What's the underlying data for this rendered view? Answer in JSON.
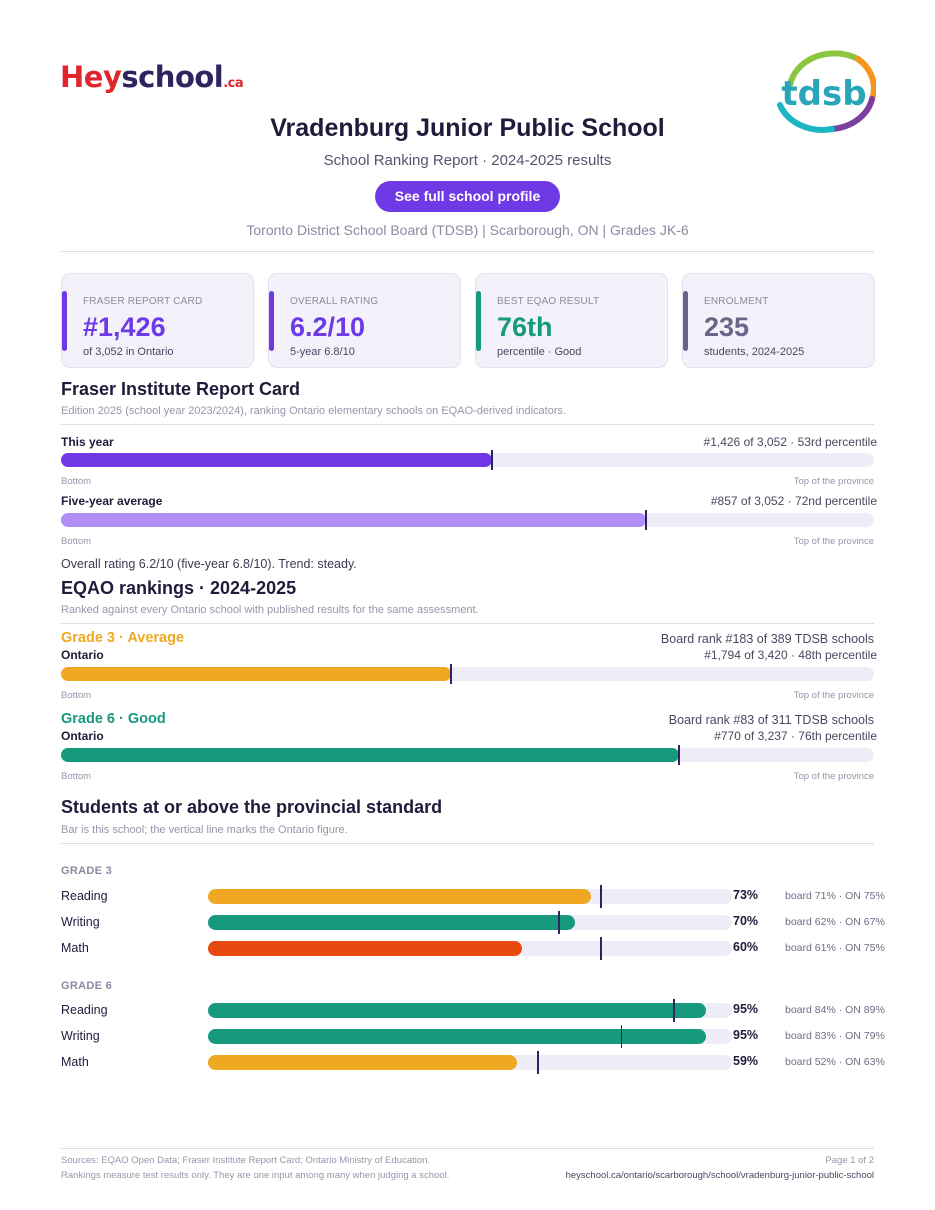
{
  "header": {
    "logo_hey": "Hey",
    "logo_school": "school",
    "logo_ca": ".ca",
    "logo_tdsb": "tdsb",
    "title": "Vradenburg Junior Public School",
    "subtitle": "School Ranking Report  ·  2024-2025 results",
    "cta": "See full school profile",
    "meta": "Toronto District School Board (TDSB)  |  Scarborough, ON  |  Grades JK-6"
  },
  "cards": [
    {
      "label": "FRASER REPORT CARD",
      "value": "#1,426",
      "sub": "of 3,052 in Ontario",
      "color": "#6f3ae6"
    },
    {
      "label": "OVERALL RATING",
      "value": "6.2/10",
      "sub": "5-year 6.8/10",
      "color": "#6f3ae6"
    },
    {
      "label": "BEST EQAO RESULT",
      "value": "76th",
      "sub": "percentile  ·  Good",
      "color": "#169a7e"
    },
    {
      "label": "ENROLMENT",
      "value": "235",
      "sub": "students, 2024-2025",
      "color": "#6b6489"
    }
  ],
  "fraser": {
    "heading": "Fraser Institute Report Card",
    "note": "Edition 2025 (school year 2023/2024), ranking Ontario elementary schools on EQAO-derived indicators.",
    "rows": [
      {
        "label": "This year",
        "value": "#1,426 of 3,052  ·  53rd percentile",
        "percentile": 53,
        "color": "#6f3ae6"
      },
      {
        "label": "Five-year average",
        "value": "#857 of 3,052  ·  72nd percentile",
        "percentile": 72,
        "color": "#b18ef6"
      }
    ],
    "end_left": "Bottom",
    "end_right": "Top of the province",
    "summary": "Overall rating 6.2/10 (five-year 6.8/10). Trend: steady."
  },
  "eqao": {
    "heading": "EQAO rankings  ·  2024-2025",
    "note": "Ranked against every Ontario school with published results for the same assessment.",
    "grades": [
      {
        "head": "Grade 3  ·  Average",
        "color": "#f0a822",
        "board_rank": "Board rank #183 of 389 TDSB schools",
        "scope": "Ontario",
        "value": "#1,794 of 3,420  ·  48th percentile",
        "percentile": 48
      },
      {
        "head": "Grade 6  ·  Good",
        "color": "#169a7e",
        "board_rank": "Board rank #83 of 311 TDSB schools",
        "scope": "Ontario",
        "value": "#770 of 3,237  ·  76th percentile",
        "percentile": 76
      }
    ],
    "end_left": "Bottom",
    "end_right": "Top of the province"
  },
  "standard": {
    "heading": "Students at or above the provincial standard",
    "note": "Bar is this school; the vertical line marks the Ontario figure.",
    "groups": [
      {
        "label": "GRADE 3",
        "rows": [
          {
            "subject": "Reading",
            "pct": 73,
            "pct_label": "73%",
            "ontario": 75,
            "compare": "board 71%  ·  ON 75%",
            "color": "#f0a822"
          },
          {
            "subject": "Writing",
            "pct": 70,
            "pct_label": "70%",
            "ontario": 67,
            "compare": "board 62%  ·  ON 67%",
            "color": "#169a7e"
          },
          {
            "subject": "Math",
            "pct": 60,
            "pct_label": "60%",
            "ontario": 75,
            "compare": "board 61%  ·  ON 75%",
            "color": "#e8490f"
          }
        ]
      },
      {
        "label": "GRADE 6",
        "rows": [
          {
            "subject": "Reading",
            "pct": 95,
            "pct_label": "95%",
            "ontario": 89,
            "compare": "board 84%  ·  ON 89%",
            "color": "#169a7e"
          },
          {
            "subject": "Writing",
            "pct": 95,
            "pct_label": "95%",
            "ontario": 79,
            "compare": "board 83%  ·  ON 79%",
            "color": "#169a7e"
          },
          {
            "subject": "Math",
            "pct": 59,
            "pct_label": "59%",
            "ontario": 63,
            "compare": "board 52%  ·  ON 63%",
            "color": "#f0a822"
          }
        ]
      }
    ]
  },
  "footer": {
    "sources": "Sources: EQAO Open Data; Fraser Institute Report Card; Ontario Ministry of Education.",
    "disclaimer": "Rankings measure test results only. They are one input among many when judging a school.",
    "page": "Page 1 of 2",
    "url": "heyschool.ca/ontario/scarborough/school/vradenburg-junior-public-school"
  }
}
